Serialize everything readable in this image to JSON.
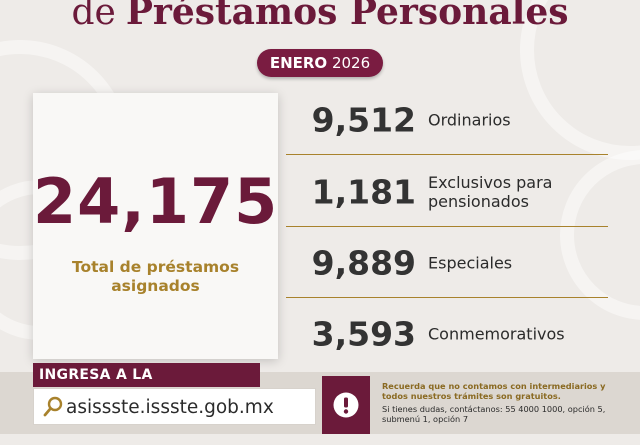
{
  "header": {
    "title_prefix": "de",
    "title_main": "Préstamos Personales",
    "month": "ENERO",
    "year": "2026"
  },
  "total": {
    "value": "24,175",
    "label": "Total de préstamos asignados"
  },
  "loans": [
    {
      "value": "9,512",
      "label": "Ordinarios"
    },
    {
      "value": "1,181",
      "label": "Exclusivos para pensionados"
    },
    {
      "value": "9,889",
      "label": "Especiales"
    },
    {
      "value": "3,593",
      "label": "Conmemorativos"
    }
  ],
  "footer": {
    "platform_label": "INGRESA A LA PLATAFORMA",
    "url": "asissste.issste.gob.mx",
    "notice_strong": "Recuerda que no contamos con intermediarios y todos nuestros trámites son gratuitos.",
    "notice_info": "Si tienes dudas, contáctanos: 55 4000 1000, opción 5, submenú 1, opción 7"
  },
  "colors": {
    "brand": "#6b1a3a",
    "gold": "#a8822c",
    "background": "#eeebe8"
  },
  "icons": [
    "search-icon",
    "alert-icon"
  ]
}
